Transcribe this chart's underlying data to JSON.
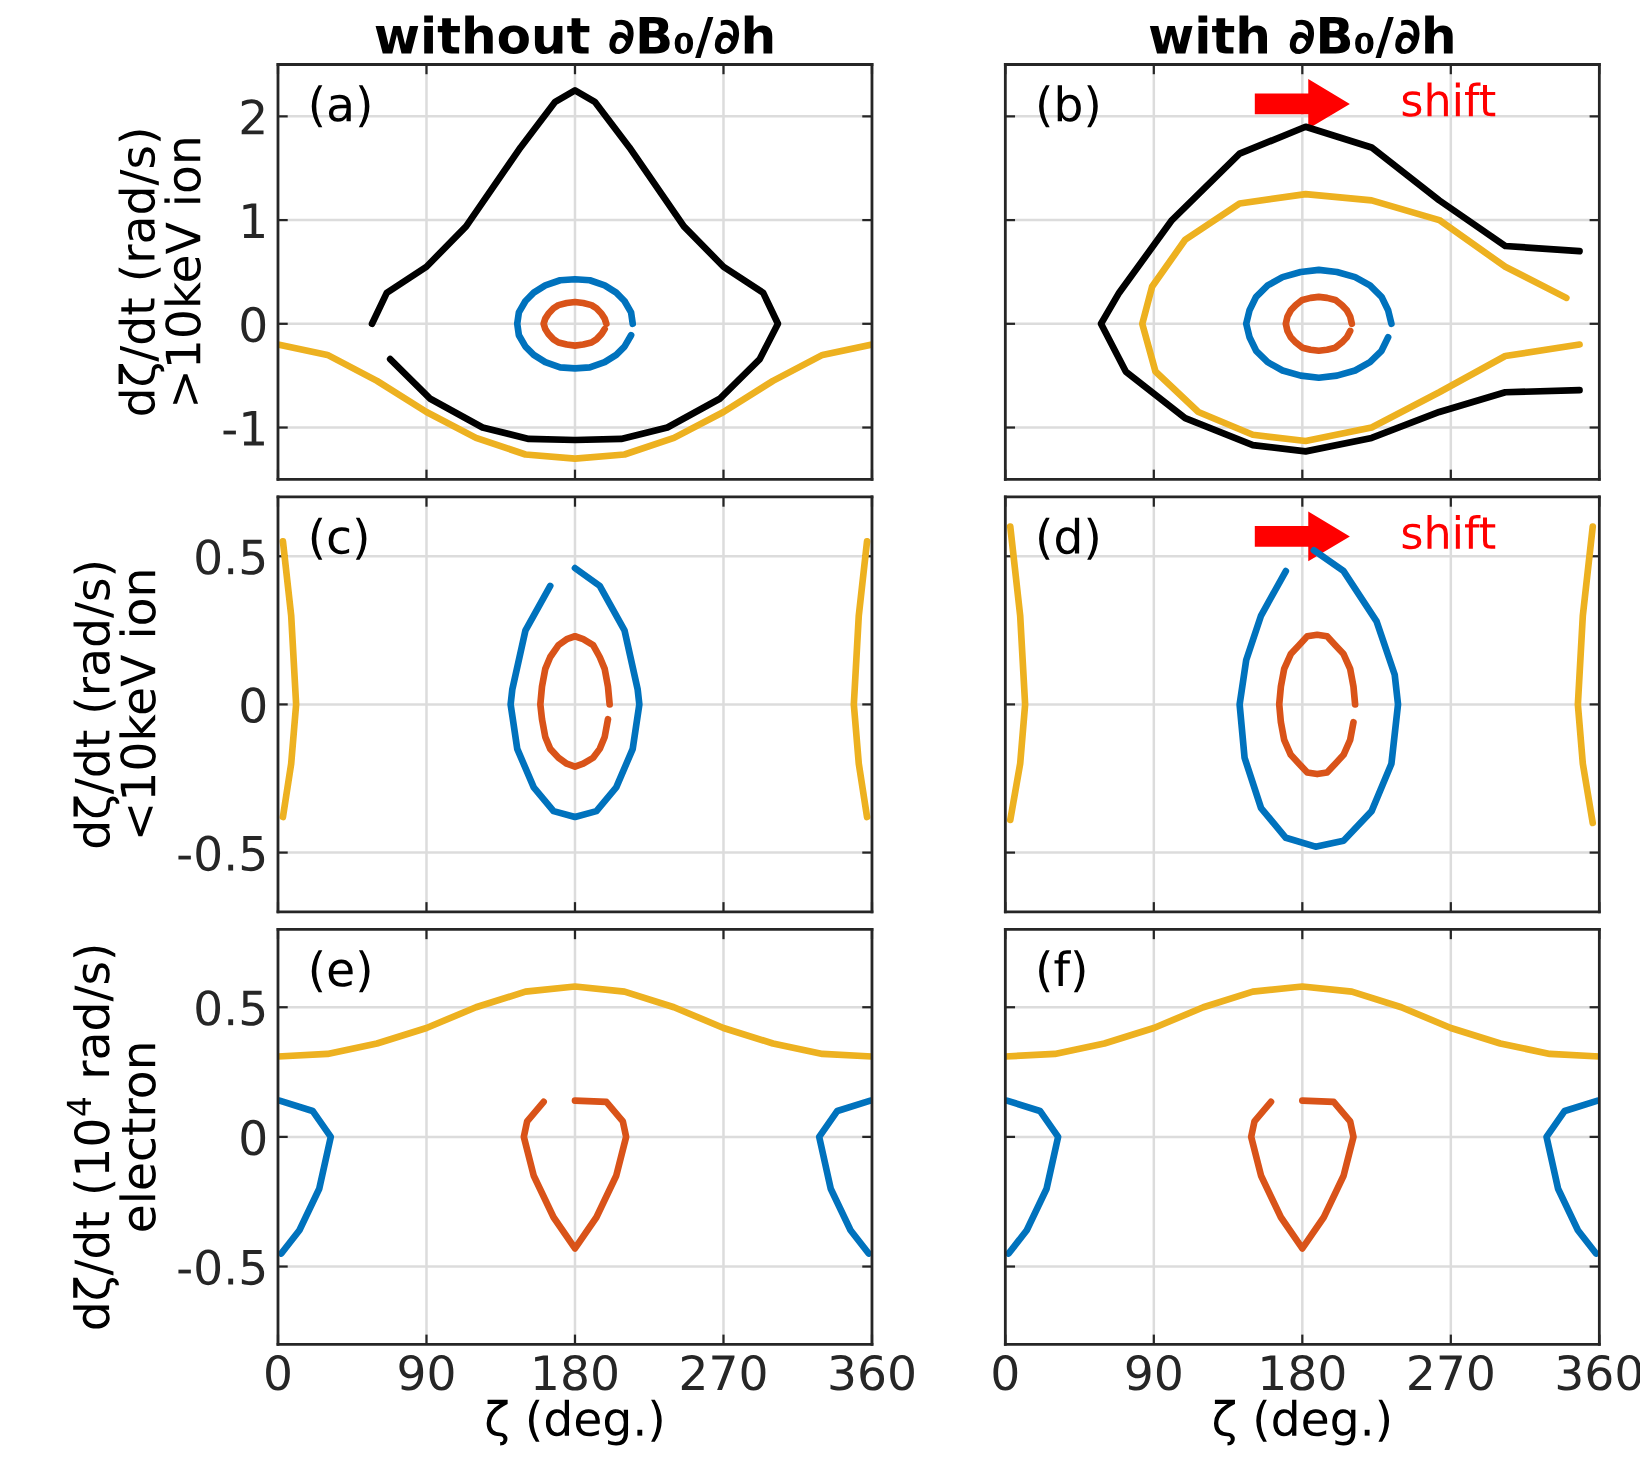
{
  "chart_data": [
    {
      "type": "line",
      "title": "without ∂B₀/∂h",
      "ylabel": "dζ/dt (rad/s)\n>10keV ion",
      "xlim": [
        0,
        360
      ],
      "xticks": [
        0,
        90,
        180,
        270,
        360
      ],
      "ylim": [
        -1.5,
        2.5
      ],
      "yticks": [
        -1,
        0,
        1,
        2
      ],
      "grid": true,
      "tick_labels": "y",
      "annotations": [
        "(a)"
      ],
      "series": [
        {
          "color": "#000000",
          "x": [
            57,
            66,
            90,
            114,
            147,
            168,
            180,
            192,
            213,
            246,
            270,
            294,
            303,
            292,
            268,
            236,
            208,
            180,
            152,
            124,
            92,
            68
          ],
          "values": [
            0,
            0.3,
            0.55,
            0.94,
            1.7,
            2.14,
            2.25,
            2.14,
            1.7,
            0.94,
            0.55,
            0.3,
            0,
            -0.34,
            -0.72,
            -1.0,
            -1.11,
            -1.12,
            -1.11,
            -1.0,
            -0.72,
            -0.34
          ]
        },
        {
          "color": "#edb120",
          "x": [
            0,
            30,
            60,
            90,
            120,
            150,
            180,
            210,
            240,
            270,
            300,
            330,
            360
          ],
          "values": [
            -0.2,
            -0.3,
            -0.55,
            -0.85,
            -1.1,
            -1.26,
            -1.3,
            -1.26,
            -1.1,
            -0.85,
            -0.55,
            -0.3,
            -0.2
          ]
        },
        {
          "color": "#0072bd",
          "x": [
            215,
            214,
            210,
            205,
            198,
            189,
            180,
            171,
            162,
            155,
            150,
            146,
            145,
            146,
            150,
            155,
            162,
            171,
            180,
            189,
            198,
            205,
            210,
            214
          ],
          "values": [
            0,
            0.11,
            0.22,
            0.3,
            0.37,
            0.42,
            0.43,
            0.42,
            0.37,
            0.3,
            0.22,
            0.11,
            0,
            -0.11,
            -0.22,
            -0.3,
            -0.37,
            -0.42,
            -0.43,
            -0.42,
            -0.37,
            -0.3,
            -0.22,
            -0.11
          ]
        },
        {
          "color": "#d95319",
          "x": [
            199,
            198,
            196,
            193,
            190,
            185,
            180,
            175,
            170,
            167,
            164,
            162,
            161,
            162,
            164,
            167,
            170,
            175,
            180,
            185,
            190,
            193,
            196,
            198
          ],
          "values": [
            0,
            0.05,
            0.1,
            0.15,
            0.18,
            0.2,
            0.21,
            0.2,
            0.18,
            0.15,
            0.1,
            0.05,
            0,
            -0.05,
            -0.1,
            -0.15,
            -0.18,
            -0.2,
            -0.21,
            -0.2,
            -0.18,
            -0.15,
            -0.1,
            -0.05
          ]
        }
      ]
    },
    {
      "type": "line",
      "title": "with ∂B₀/∂h",
      "xlim": [
        0,
        360
      ],
      "xticks": [
        0,
        90,
        180,
        270,
        360
      ],
      "ylim": [
        -1.5,
        2.5
      ],
      "yticks": [
        -1,
        0,
        1,
        2
      ],
      "grid": true,
      "tick_labels": false,
      "annotations": [
        "(b)",
        "shift"
      ],
      "series": [
        {
          "color": "#000000",
          "x": [
            348,
            303,
            263,
            222,
            182,
            142,
            101,
            69,
            58,
            73,
            109,
            150,
            182,
            222,
            263,
            303,
            348
          ],
          "values": [
            0.7,
            0.75,
            1.19,
            1.7,
            1.9,
            1.64,
            1.0,
            0.3,
            0,
            -0.46,
            -0.91,
            -1.17,
            -1.23,
            -1.1,
            -0.85,
            -0.66,
            -0.64
          ]
        },
        {
          "color": "#edb120",
          "x": [
            340,
            303,
            263,
            222,
            182,
            142,
            109,
            89,
            83,
            91,
            117,
            150,
            182,
            222,
            263,
            303,
            348
          ],
          "values": [
            0.25,
            0.55,
            1.0,
            1.19,
            1.25,
            1.16,
            0.81,
            0.36,
            0,
            -0.46,
            -0.85,
            -1.07,
            -1.13,
            -1.0,
            -0.66,
            -0.31,
            -0.2
          ]
        },
        {
          "color": "#0072bd",
          "x": [
            234,
            232,
            228,
            221,
            212,
            201,
            190,
            179,
            168,
            159,
            152,
            148,
            146,
            148,
            152,
            159,
            168,
            179,
            190,
            201,
            212,
            221,
            228,
            232
          ],
          "values": [
            0,
            0.13,
            0.26,
            0.37,
            0.45,
            0.5,
            0.52,
            0.5,
            0.45,
            0.37,
            0.26,
            0.13,
            0,
            -0.13,
            -0.26,
            -0.37,
            -0.45,
            -0.5,
            -0.52,
            -0.5,
            -0.45,
            -0.37,
            -0.26,
            -0.13
          ]
        },
        {
          "color": "#d95319",
          "x": [
            210,
            209,
            207,
            204,
            200,
            195,
            190,
            185,
            180,
            176,
            173,
            171,
            170,
            171,
            173,
            176,
            180,
            185,
            190,
            195,
            200,
            204,
            207,
            209
          ],
          "values": [
            0,
            0.07,
            0.13,
            0.18,
            0.23,
            0.25,
            0.26,
            0.25,
            0.23,
            0.18,
            0.13,
            0.07,
            0,
            -0.07,
            -0.13,
            -0.18,
            -0.23,
            -0.25,
            -0.26,
            -0.25,
            -0.23,
            -0.18,
            -0.13,
            -0.07
          ]
        }
      ]
    },
    {
      "type": "line",
      "ylabel": "dζ/dt (rad/s)\n<10keV ion",
      "xlim": [
        0,
        360
      ],
      "xticks": [
        0,
        90,
        180,
        270,
        360
      ],
      "ylim": [
        -0.7,
        0.7
      ],
      "yticks": [
        -0.5,
        0,
        0.5
      ],
      "grid": true,
      "tick_labels": "y",
      "annotations": [
        "(c)"
      ],
      "series": [
        {
          "color": "#edb120",
          "x": [
            3,
            8,
            11,
            8,
            3
          ],
          "values": [
            0.55,
            0.3,
            0,
            -0.2,
            -0.38
          ]
        },
        {
          "color": "#edb120",
          "x": [
            357,
            352,
            349,
            352,
            357
          ],
          "values": [
            0.55,
            0.3,
            0,
            -0.2,
            -0.38
          ]
        },
        {
          "color": "#0072bd",
          "x": [
            180,
            195,
            210,
            218,
            219,
            215,
            205,
            193,
            180,
            167,
            155,
            145,
            141,
            142,
            150,
            165
          ],
          "values": [
            0.46,
            0.4,
            0.25,
            0.05,
            0,
            -0.15,
            -0.28,
            -0.36,
            -0.38,
            -0.36,
            -0.28,
            -0.15,
            0,
            0.05,
            0.25,
            0.4
          ]
        },
        {
          "color": "#d95319",
          "x": [
            201,
            200,
            198,
            195,
            191,
            185,
            180,
            175,
            170,
            165,
            162,
            160,
            159,
            160,
            162,
            165,
            170,
            175,
            180,
            185,
            191,
            195,
            198,
            200
          ],
          "values": [
            0,
            0.06,
            0.12,
            0.16,
            0.2,
            0.22,
            0.23,
            0.22,
            0.2,
            0.16,
            0.12,
            0.06,
            0,
            -0.05,
            -0.11,
            -0.15,
            -0.18,
            -0.2,
            -0.21,
            -0.2,
            -0.18,
            -0.15,
            -0.11,
            -0.05
          ]
        }
      ]
    },
    {
      "type": "line",
      "xlim": [
        0,
        360
      ],
      "xticks": [
        0,
        90,
        180,
        270,
        360
      ],
      "ylim": [
        -0.7,
        0.7
      ],
      "yticks": [
        -0.5,
        0,
        0.5
      ],
      "grid": true,
      "tick_labels": false,
      "annotations": [
        "(d)",
        "shift"
      ],
      "series": [
        {
          "color": "#edb120",
          "x": [
            3,
            9,
            12,
            9,
            3
          ],
          "values": [
            0.6,
            0.3,
            0,
            -0.2,
            -0.39
          ]
        },
        {
          "color": "#edb120",
          "x": [
            356,
            350,
            347,
            350,
            356
          ],
          "values": [
            0.6,
            0.3,
            0,
            -0.2,
            -0.4
          ]
        },
        {
          "color": "#0072bd",
          "x": [
            187,
            205,
            225,
            236,
            238,
            234,
            222,
            205,
            188,
            170,
            155,
            145,
            142,
            146,
            155,
            170
          ],
          "values": [
            0.52,
            0.45,
            0.28,
            0.1,
            0,
            -0.2,
            -0.36,
            -0.46,
            -0.48,
            -0.45,
            -0.35,
            -0.18,
            0,
            0.15,
            0.3,
            0.45
          ]
        },
        {
          "color": "#d95319",
          "x": [
            212,
            211,
            209,
            205,
            200,
            195,
            189,
            183,
            178,
            173,
            169,
            167,
            166,
            167,
            169,
            173,
            178,
            183,
            189,
            195,
            200,
            205,
            209,
            211
          ],
          "values": [
            0,
            0.06,
            0.12,
            0.17,
            0.2,
            0.23,
            0.235,
            0.23,
            0.2,
            0.17,
            0.12,
            0.06,
            0,
            -0.06,
            -0.12,
            -0.17,
            -0.2,
            -0.23,
            -0.235,
            -0.23,
            -0.2,
            -0.17,
            -0.12,
            -0.06
          ]
        }
      ]
    },
    {
      "type": "line",
      "ylabel": "dζ/dt (10$^{4}$ rad/s)\nelectron",
      "xlabel": "ζ (deg.)",
      "xlim": [
        0,
        360
      ],
      "xticks": [
        0,
        90,
        180,
        270,
        360
      ],
      "ylim": [
        -0.8,
        0.8
      ],
      "yticks": [
        -0.5,
        0,
        0.5
      ],
      "grid": true,
      "annotations": [
        "(e)"
      ],
      "series": [
        {
          "color": "#edb120",
          "x": [
            0,
            30,
            60,
            90,
            120,
            150,
            180,
            210,
            240,
            270,
            300,
            330,
            360
          ],
          "values": [
            0.31,
            0.32,
            0.36,
            0.42,
            0.5,
            0.56,
            0.58,
            0.56,
            0.5,
            0.42,
            0.36,
            0.32,
            0.31
          ]
        },
        {
          "color": "#0072bd",
          "x": [
            1,
            21,
            32,
            25,
            13,
            2
          ],
          "values": [
            0.14,
            0.1,
            0,
            -0.2,
            -0.36,
            -0.45
          ]
        },
        {
          "color": "#0072bd",
          "x": [
            359,
            339,
            328,
            335,
            347,
            358
          ],
          "values": [
            0.14,
            0.1,
            0,
            -0.2,
            -0.36,
            -0.45
          ]
        },
        {
          "color": "#d95319",
          "x": [
            180,
            199,
            209,
            211,
            205,
            193,
            180,
            167,
            155,
            149,
            151,
            161
          ],
          "values": [
            0.14,
            0.135,
            0.06,
            0,
            -0.15,
            -0.31,
            -0.43,
            -0.31,
            -0.15,
            0,
            0.06,
            0.135
          ]
        }
      ]
    },
    {
      "type": "line",
      "xlabel": "ζ (deg.)",
      "xlim": [
        0,
        360
      ],
      "xticks": [
        0,
        90,
        180,
        270,
        360
      ],
      "ylim": [
        -0.8,
        0.8
      ],
      "yticks": [
        -0.5,
        0,
        0.5
      ],
      "grid": true,
      "tick_labels": "x",
      "annotations": [
        "(f)"
      ],
      "series": [
        {
          "color": "#edb120",
          "x": [
            0,
            30,
            60,
            90,
            120,
            150,
            180,
            210,
            240,
            270,
            300,
            330,
            360
          ],
          "values": [
            0.31,
            0.32,
            0.36,
            0.42,
            0.5,
            0.56,
            0.58,
            0.56,
            0.5,
            0.42,
            0.36,
            0.32,
            0.31
          ]
        },
        {
          "color": "#0072bd",
          "x": [
            1,
            21,
            32,
            25,
            13,
            2
          ],
          "values": [
            0.14,
            0.1,
            0,
            -0.2,
            -0.36,
            -0.45
          ]
        },
        {
          "color": "#0072bd",
          "x": [
            359,
            339,
            328,
            335,
            347,
            358
          ],
          "values": [
            0.14,
            0.1,
            0,
            -0.2,
            -0.36,
            -0.45
          ]
        },
        {
          "color": "#d95319",
          "x": [
            180,
            199,
            209,
            211,
            205,
            193,
            180,
            167,
            155,
            149,
            151,
            161
          ],
          "values": [
            0.14,
            0.135,
            0.06,
            0,
            -0.15,
            -0.31,
            -0.43,
            -0.31,
            -0.15,
            0,
            0.06,
            0.135
          ]
        }
      ]
    }
  ]
}
